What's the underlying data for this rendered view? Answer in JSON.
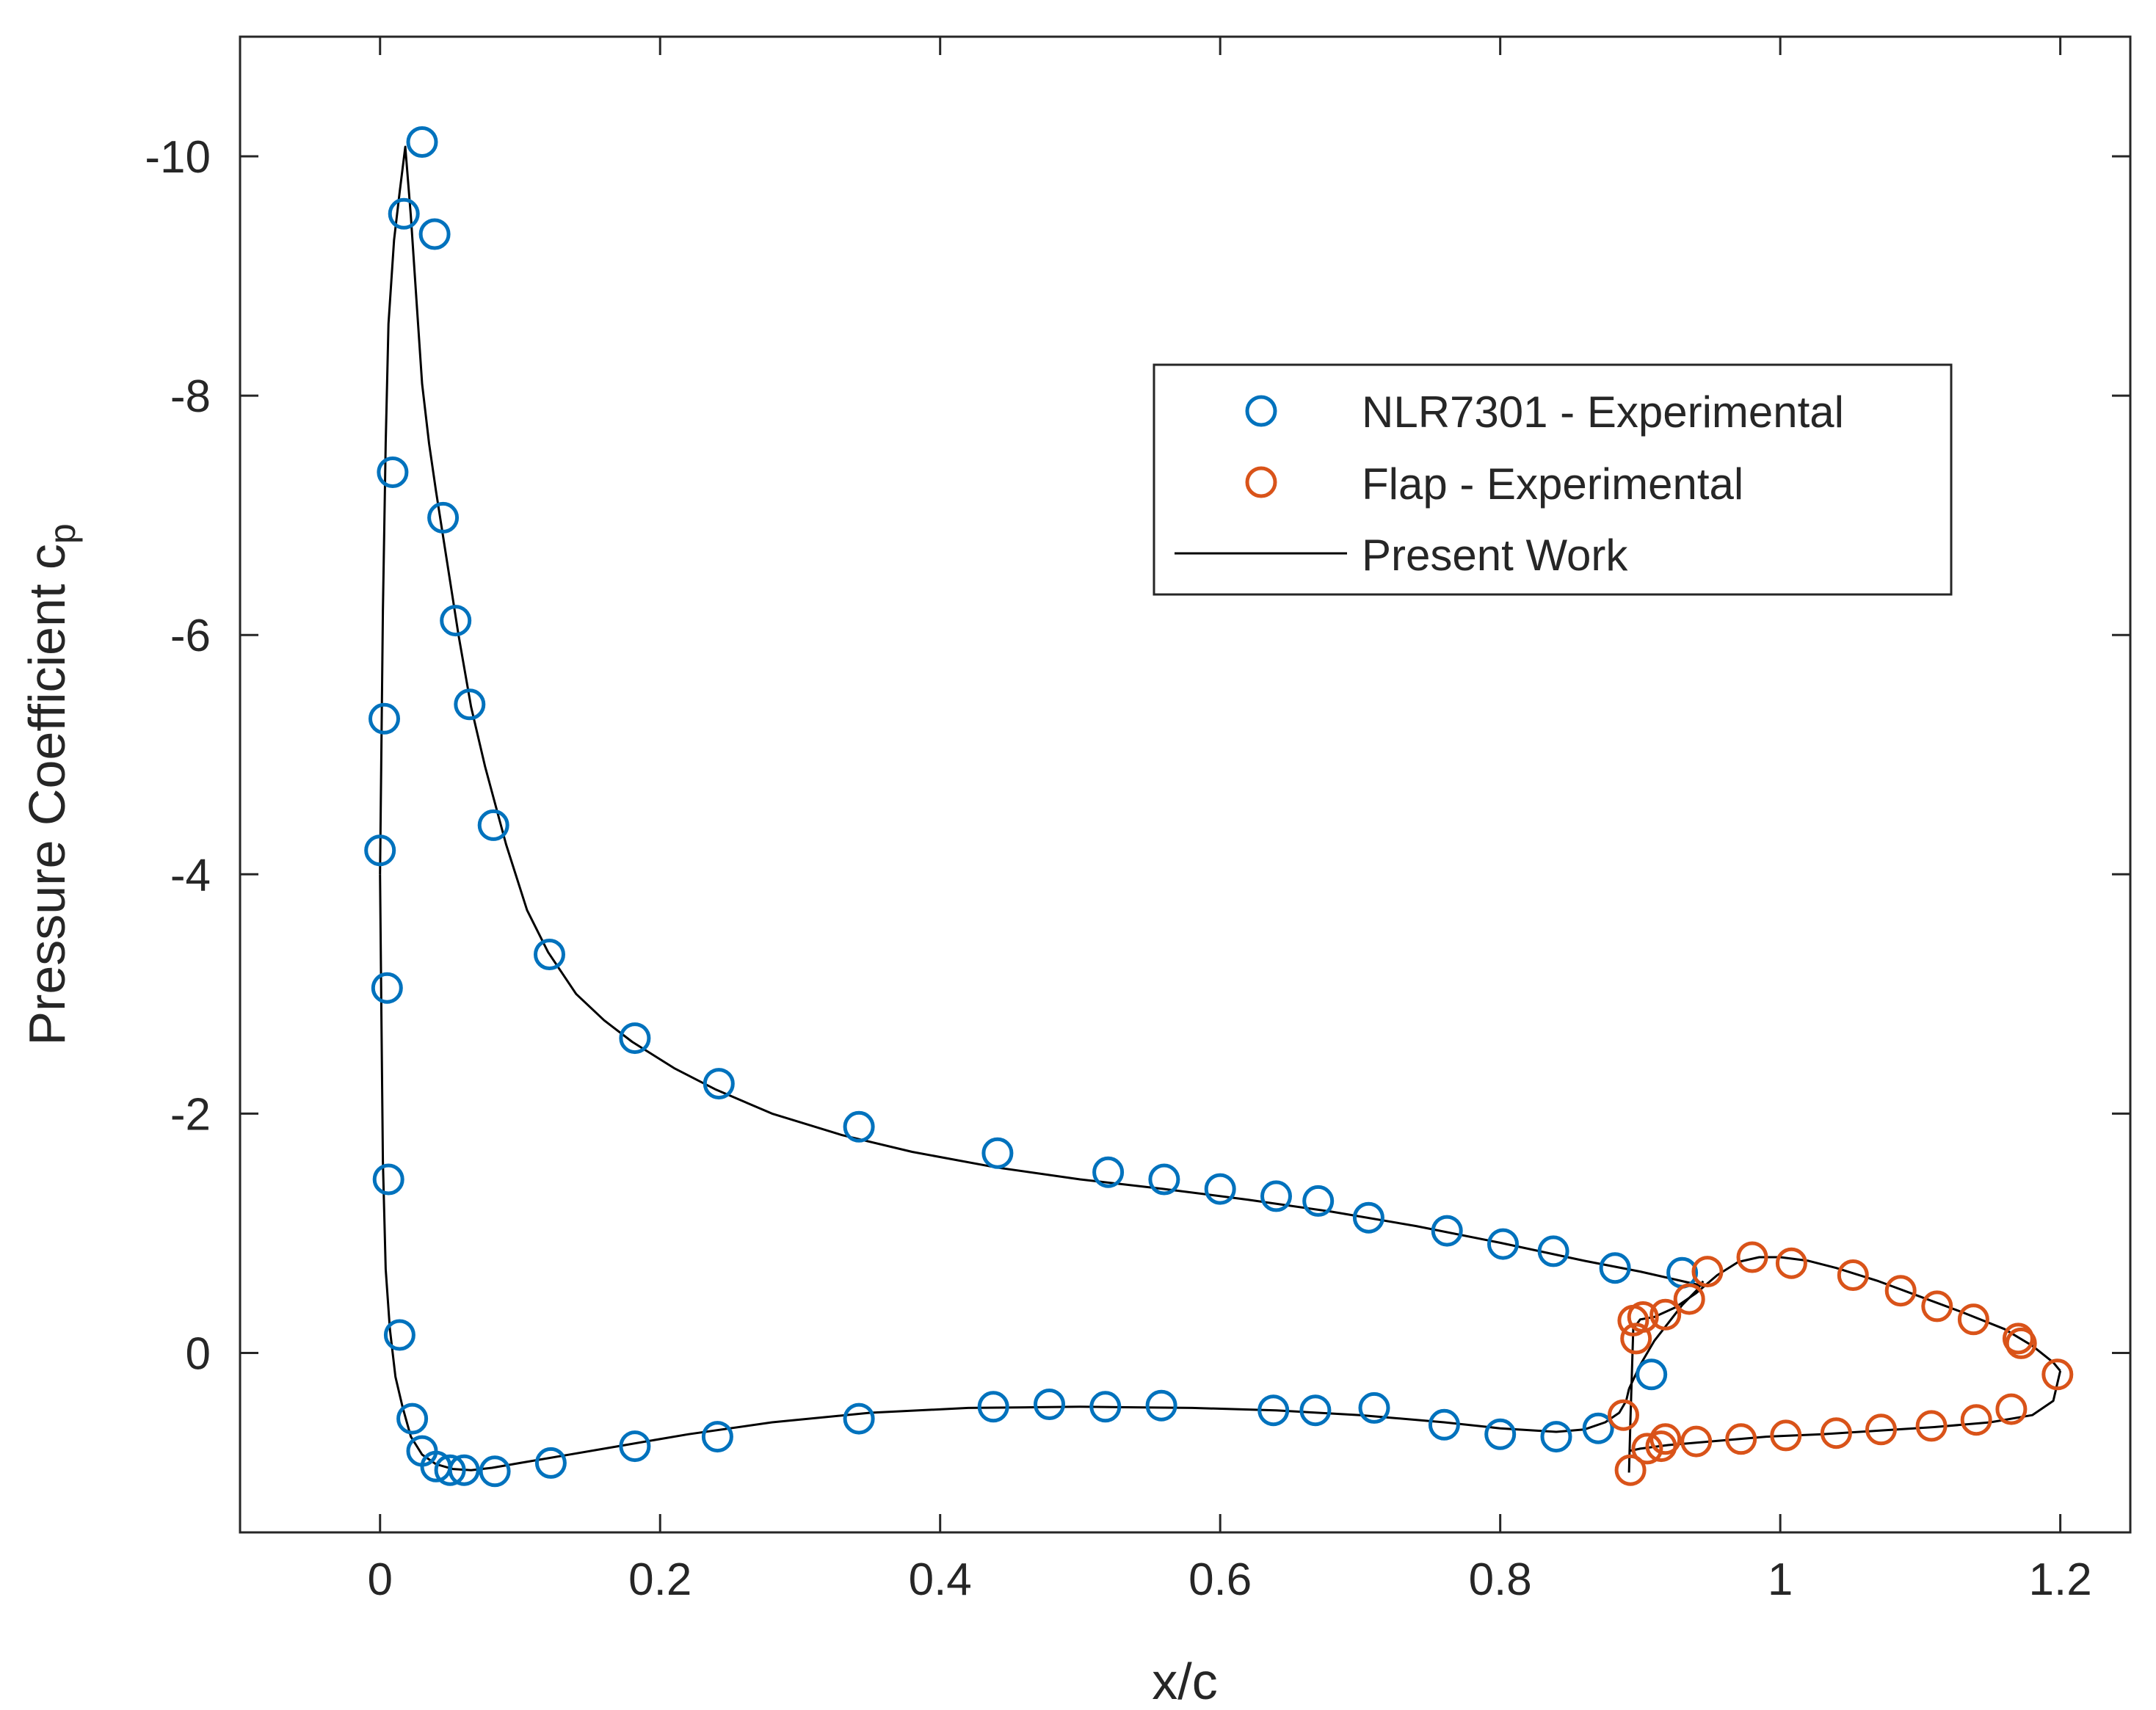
{
  "chart_data": {
    "type": "scatter",
    "title": "",
    "xlabel": "x/c",
    "ylabel": "Pressure Coefficient c",
    "ylabel_subscript": "p",
    "xlim": [
      -0.1,
      1.25
    ],
    "ylim": [
      1.5,
      -11
    ],
    "y_reversed": true,
    "xticks": [
      0,
      0.2,
      0.4,
      0.6,
      0.8,
      1,
      1.2
    ],
    "xtick_labels": [
      "0",
      "0.2",
      "0.4",
      "0.6",
      "0.8",
      "1",
      "1.2"
    ],
    "yticks": [
      -10,
      -8,
      -6,
      -4,
      -2,
      0
    ],
    "ytick_labels": [
      "-10",
      "-8",
      "-6",
      "-4",
      "-2",
      "0"
    ],
    "grid": false,
    "legend_position": "upper-right",
    "colors": {
      "main": "#0072BD",
      "flap": "#D95319",
      "line": "#000000"
    },
    "series": [
      {
        "name": "NLR7301 - Experimental",
        "marker": "circle",
        "x": [
          0.03,
          0.017,
          0.039,
          0.009,
          0.045,
          0.054,
          0.064,
          0.081,
          0.003,
          0.0,
          0.005,
          0.121,
          0.182,
          0.242,
          0.342,
          0.441,
          0.52,
          0.56,
          0.6,
          0.64,
          0.67,
          0.706,
          0.762,
          0.802,
          0.838,
          0.882,
          0.93,
          0.006,
          0.014,
          0.023,
          0.03,
          0.04,
          0.05,
          0.06,
          0.082,
          0.122,
          0.182,
          0.241,
          0.342,
          0.438,
          0.478,
          0.518,
          0.558,
          0.638,
          0.668,
          0.71,
          0.76,
          0.8,
          0.84,
          0.87,
          0.908
        ],
        "y": [
          -10.12,
          -9.52,
          -9.35,
          -7.36,
          -6.98,
          -6.12,
          -5.42,
          -4.41,
          -5.3,
          -4.2,
          -3.05,
          -3.33,
          -2.63,
          -2.25,
          -1.89,
          -1.67,
          -1.51,
          -1.45,
          -1.37,
          -1.31,
          -1.27,
          -1.13,
          -1.02,
          -0.91,
          -0.85,
          -0.71,
          -0.67,
          -1.45,
          -0.15,
          0.55,
          0.82,
          0.95,
          0.98,
          0.98,
          0.99,
          0.92,
          0.78,
          0.7,
          0.55,
          0.45,
          0.43,
          0.45,
          0.44,
          0.48,
          0.48,
          0.46,
          0.6,
          0.68,
          0.7,
          0.63,
          0.18
        ]
      },
      {
        "name": "Flap - Experimental",
        "marker": "circle",
        "x": [
          0.948,
          0.98,
          1.008,
          1.052,
          1.086,
          1.112,
          1.138,
          1.17,
          1.198,
          0.935,
          0.918,
          0.902,
          0.895,
          0.897,
          0.915,
          0.94,
          0.972,
          1.004,
          1.04,
          1.072,
          1.108,
          1.14,
          1.165,
          1.172,
          0.888,
          0.893,
          0.905,
          0.918
        ],
        "y": [
          -0.68,
          -0.8,
          -0.75,
          -0.65,
          -0.52,
          -0.39,
          -0.28,
          -0.12,
          0.18,
          -0.45,
          -0.32,
          -0.3,
          -0.27,
          -0.12,
          0.78,
          0.74,
          0.72,
          0.69,
          0.67,
          0.64,
          0.61,
          0.56,
          0.47,
          -0.08,
          0.52,
          0.98,
          0.8,
          0.72
        ]
      },
      {
        "name": "Present Work",
        "marker": "line",
        "x": [
          0.0,
          0.002,
          0.004,
          0.006,
          0.01,
          0.014,
          0.018,
          0.022,
          0.026,
          0.03,
          0.035,
          0.04,
          0.048,
          0.056,
          0.065,
          0.075,
          0.09,
          0.105,
          0.12,
          0.14,
          0.16,
          0.18,
          0.21,
          0.24,
          0.28,
          0.33,
          0.38,
          0.44,
          0.5,
          0.56,
          0.62,
          0.68,
          0.74,
          0.8,
          0.86,
          0.9,
          0.93,
          0.945
        ],
        "y": [
          -4.0,
          -6.2,
          -7.6,
          -8.6,
          -9.3,
          -9.7,
          -10.08,
          -9.5,
          -8.8,
          -8.1,
          -7.6,
          -7.2,
          -6.6,
          -6.0,
          -5.4,
          -4.9,
          -4.25,
          -3.7,
          -3.35,
          -3.0,
          -2.78,
          -2.6,
          -2.38,
          -2.2,
          -2.0,
          -1.82,
          -1.68,
          -1.55,
          -1.45,
          -1.37,
          -1.28,
          -1.18,
          -1.06,
          -0.92,
          -0.77,
          -0.68,
          -0.6,
          -0.56
        ]
      }
    ],
    "line_lower_surface": {
      "x": [
        0.0,
        0.001,
        0.002,
        0.004,
        0.007,
        0.011,
        0.016,
        0.022,
        0.03,
        0.04,
        0.052,
        0.065,
        0.08,
        0.1,
        0.13,
        0.17,
        0.22,
        0.28,
        0.35,
        0.42,
        0.5,
        0.58,
        0.64,
        0.7,
        0.76,
        0.8,
        0.84,
        0.86,
        0.875,
        0.885,
        0.89,
        0.892
      ],
      "y": [
        -4.0,
        -2.8,
        -1.6,
        -0.7,
        -0.2,
        0.2,
        0.45,
        0.7,
        0.85,
        0.93,
        0.97,
        0.98,
        0.96,
        0.92,
        0.86,
        0.78,
        0.68,
        0.58,
        0.5,
        0.46,
        0.45,
        0.46,
        0.48,
        0.52,
        0.58,
        0.63,
        0.66,
        0.64,
        0.58,
        0.5,
        0.4,
        0.3
      ]
    },
    "line_flap_upper": {
      "x": [
        0.892,
        0.893,
        0.895,
        0.9,
        0.91,
        0.925,
        0.94,
        0.955,
        0.97,
        0.985,
        1.0,
        1.02,
        1.04,
        1.07,
        1.1,
        1.13,
        1.16,
        1.18,
        1.195,
        1.2
      ],
      "y": [
        1.0,
        0.55,
        -0.2,
        -0.28,
        -0.3,
        -0.38,
        -0.5,
        -0.65,
        -0.76,
        -0.8,
        -0.8,
        -0.77,
        -0.71,
        -0.6,
        -0.47,
        -0.34,
        -0.2,
        -0.06,
        0.08,
        0.15
      ]
    },
    "line_flap_lower": {
      "x": [
        0.892,
        0.9,
        0.92,
        0.95,
        0.99,
        1.03,
        1.07,
        1.11,
        1.15,
        1.18,
        1.195,
        1.2
      ],
      "y": [
        0.82,
        0.8,
        0.77,
        0.74,
        0.7,
        0.68,
        0.65,
        0.62,
        0.58,
        0.52,
        0.4,
        0.15
      ]
    },
    "line_connector": {
      "x": [
        0.892,
        0.9,
        0.91,
        0.92,
        0.93,
        0.94,
        0.945
      ],
      "y": [
        0.3,
        0.1,
        -0.1,
        -0.25,
        -0.4,
        -0.52,
        -0.6
      ]
    }
  }
}
